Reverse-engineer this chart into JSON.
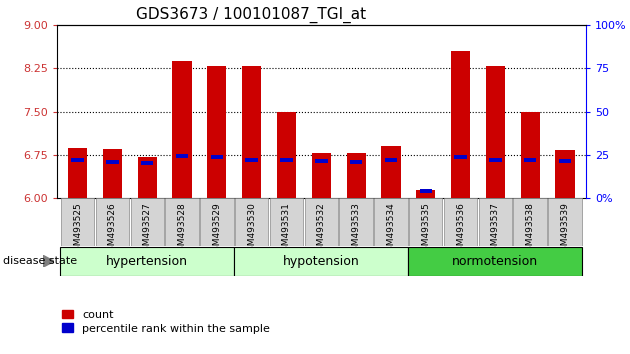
{
  "title": "GDS3673 / 100101087_TGI_at",
  "samples": [
    "GSM493525",
    "GSM493526",
    "GSM493527",
    "GSM493528",
    "GSM493529",
    "GSM493530",
    "GSM493531",
    "GSM493532",
    "GSM493533",
    "GSM493534",
    "GSM493535",
    "GSM493536",
    "GSM493537",
    "GSM493538",
    "GSM493539"
  ],
  "red_values": [
    6.87,
    6.86,
    6.72,
    8.38,
    8.28,
    8.28,
    7.49,
    6.79,
    6.78,
    6.9,
    6.15,
    8.55,
    8.28,
    7.49,
    6.83
  ],
  "blue_bottom": [
    6.62,
    6.6,
    6.58,
    6.69,
    6.68,
    6.63,
    6.62,
    6.61,
    6.6,
    6.62,
    6.09,
    6.68,
    6.62,
    6.62,
    6.61
  ],
  "blue_height": [
    0.07,
    0.07,
    0.07,
    0.07,
    0.07,
    0.07,
    0.07,
    0.07,
    0.07,
    0.07,
    0.07,
    0.07,
    0.07,
    0.07,
    0.07
  ],
  "ymin": 6,
  "ymax": 9,
  "yticks_left": [
    6,
    6.75,
    7.5,
    8.25,
    9
  ],
  "yticks_right": [
    0,
    25,
    50,
    75,
    100
  ],
  "bar_color": "#cc0000",
  "blue_color": "#0000cc",
  "bar_width": 0.55,
  "groups": [
    {
      "label": "hypertension",
      "start": 0,
      "end": 5,
      "color": "#ccffcc"
    },
    {
      "label": "hypotension",
      "start": 5,
      "end": 10,
      "color": "#aaffdd"
    },
    {
      "label": "normotension",
      "start": 10,
      "end": 15,
      "color": "#44cc44"
    }
  ],
  "legend_items": [
    "count",
    "percentile rank within the sample"
  ],
  "disease_state_label": "disease state"
}
